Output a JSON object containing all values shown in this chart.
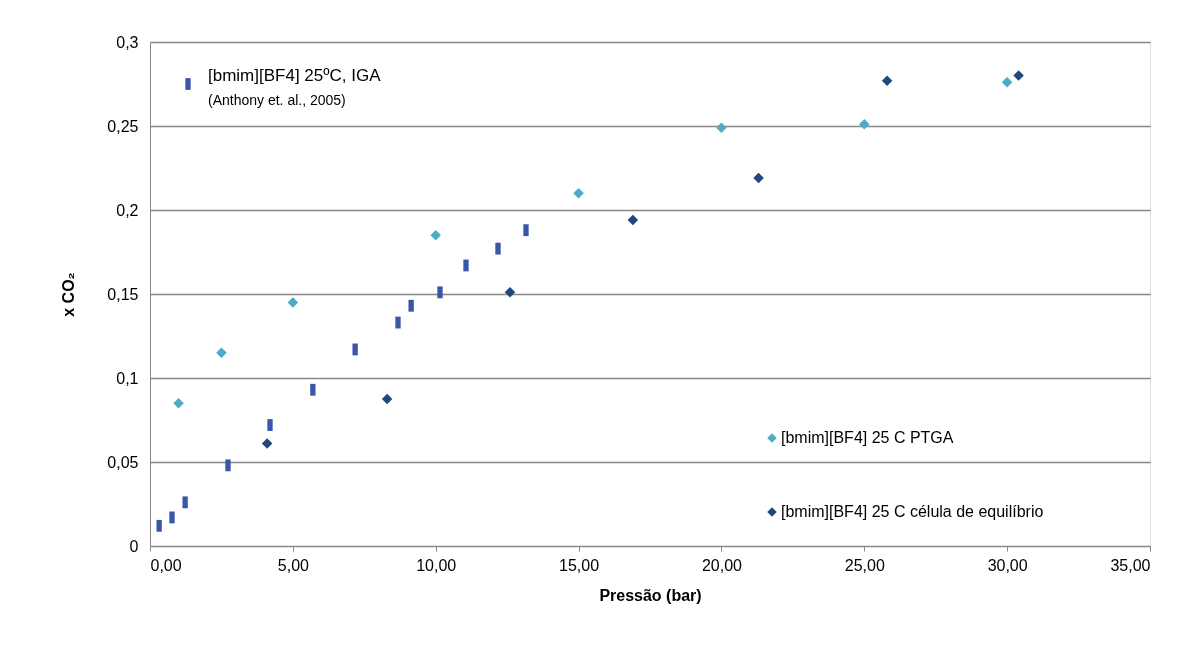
{
  "chart_data": {
    "type": "scatter",
    "xlabel": "Pressão (bar)",
    "ylabel": "x CO₂",
    "xlim": [
      0,
      35
    ],
    "ylim": [
      0,
      0.3
    ],
    "xticks": [
      {
        "value": 0,
        "label": "0,00"
      },
      {
        "value": 5,
        "label": "5,00"
      },
      {
        "value": 10,
        "label": "10,00"
      },
      {
        "value": 15,
        "label": "15,00"
      },
      {
        "value": 20,
        "label": "20,00"
      },
      {
        "value": 25,
        "label": "25,00"
      },
      {
        "value": 30,
        "label": "30,00"
      },
      {
        "value": 35,
        "label": "35,00"
      }
    ],
    "yticks": [
      {
        "value": 0,
        "label": "0"
      },
      {
        "value": 0.05,
        "label": "0,05"
      },
      {
        "value": 0.1,
        "label": "0,1"
      },
      {
        "value": 0.15,
        "label": "0,15"
      },
      {
        "value": 0.2,
        "label": "0,2"
      },
      {
        "value": 0.25,
        "label": "0,25"
      },
      {
        "value": 0.3,
        "label": "0,3"
      }
    ],
    "grid": "y",
    "legend": "top left",
    "annotations": [
      "(Anthony et. al., 2005)"
    ],
    "series": [
      {
        "name": "[bmim][BF4] 25ºC, IGA",
        "color": "#3a56a8",
        "marker": "square",
        "x": [
          0.32,
          0.77,
          1.23,
          2.73,
          4.2,
          5.7,
          7.18,
          8.68,
          9.14,
          10.15,
          11.06,
          12.18,
          13.16
        ],
        "values": [
          0.012,
          0.017,
          0.026,
          0.048,
          0.072,
          0.093,
          0.117,
          0.133,
          0.143,
          0.151,
          0.167,
          0.177,
          0.188
        ]
      },
      {
        "name": "[bmim][BF4] 25  C PTGA",
        "color": "#4bacc6",
        "marker": "diamond",
        "x": [
          1.0,
          2.5,
          5.0,
          10.0,
          15.0,
          20.0,
          25.0,
          30.0
        ],
        "values": [
          0.085,
          0.115,
          0.145,
          0.185,
          0.21,
          0.249,
          0.251,
          0.276
        ]
      },
      {
        "name": "[bmim][BF4] 25  C célula de equilíbrio",
        "color": "#1f497d",
        "marker": "diamond",
        "x": [
          4.1,
          8.3,
          12.6,
          16.9,
          21.3,
          25.8,
          30.4
        ],
        "values": [
          0.061,
          0.0875,
          0.151,
          0.194,
          0.219,
          0.277,
          0.28
        ]
      }
    ]
  }
}
